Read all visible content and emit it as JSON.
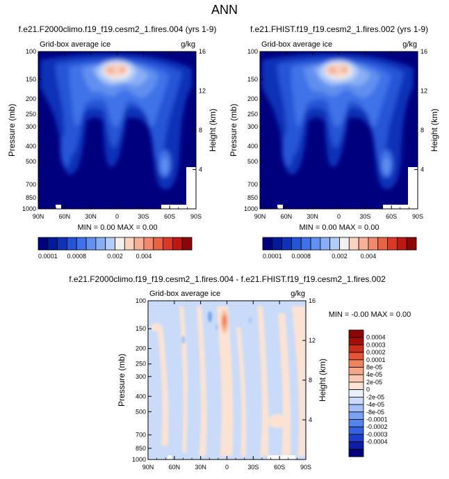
{
  "page_title": "ANN",
  "colors": {
    "ice_scale": [
      "#00007f",
      "#001a99",
      "#0f33b8",
      "#2555d6",
      "#3f72e8",
      "#6190ef",
      "#8aaef4",
      "#b4cdf8",
      "#f4f0ee",
      "#f8d3c2",
      "#f6b097",
      "#f18a6c",
      "#ea6244",
      "#db3925",
      "#bd1811",
      "#8e0505"
    ],
    "diff_scale": [
      "#00007f",
      "#0a1fa6",
      "#1d3fc8",
      "#3562df",
      "#5484ec",
      "#7aa2f1",
      "#a2c0f5",
      "#c9dbf8",
      "#e9f1fb",
      "#fbe3d4",
      "#f9c8b0",
      "#f5a887",
      "#ee835f",
      "#e35638",
      "#c92d1b",
      "#a30d07",
      "#8e0505"
    ]
  },
  "chart_data": [
    {
      "type": "heatmap",
      "title": "f.e21.F2000climo.f19_f19.cesm2_1.fires.004 (yrs 1-9)",
      "left_label": "Grid-box average ice",
      "right_label": "g/kg",
      "xlabel": "",
      "ylabel": "Pressure (mb)",
      "ylabel_right": "Height (km)",
      "x_ticks": [
        "90N",
        "60N",
        "30N",
        "0",
        "30S",
        "60S",
        "90S"
      ],
      "y_ticks": [
        "100",
        "150",
        "200",
        "250",
        "300",
        "400",
        "500",
        "700",
        "850",
        "1000"
      ],
      "y_right_ticks": [
        "16",
        "12",
        "8",
        "4"
      ],
      "min_max": "MIN =  0.00  MAX =  0.00",
      "colorbar": {
        "orientation": "horizontal",
        "labels": [
          "0.0001",
          "0.0008",
          "0.002",
          "0.004"
        ],
        "levels": 16
      }
    },
    {
      "type": "heatmap",
      "title": "f.e21.FHIST.f19_f19.cesm2_1.fires.002 (yrs 1-9)",
      "left_label": "Grid-box average ice",
      "right_label": "g/kg",
      "xlabel": "",
      "ylabel": "Pressure (mb)",
      "ylabel_right": "Height (km)",
      "x_ticks": [
        "90N",
        "60N",
        "30N",
        "0",
        "30S",
        "60S",
        "90S"
      ],
      "y_ticks": [
        "100",
        "150",
        "200",
        "250",
        "300",
        "400",
        "500",
        "700",
        "850",
        "1000"
      ],
      "y_right_ticks": [
        "16",
        "12",
        "8",
        "4"
      ],
      "min_max": "MIN =  0.00  MAX =  0.00",
      "colorbar": {
        "orientation": "horizontal",
        "labels": [
          "0.0001",
          "0.0008",
          "0.002",
          "0.004"
        ],
        "levels": 16
      }
    },
    {
      "type": "heatmap",
      "title": "f.e21.F2000climo.f19_f19.cesm2_1.fires.004 - f.e21.FHIST.f19_f19.cesm2_1.fires.002",
      "left_label": "Grid-box average ice",
      "right_label": "g/kg",
      "xlabel": "",
      "ylabel": "Pressure (mb)",
      "ylabel_right": "Height (km)",
      "x_ticks": [
        "90N",
        "60N",
        "30N",
        "0",
        "30S",
        "60S",
        "90S"
      ],
      "y_ticks": [
        "100",
        "150",
        "200",
        "250",
        "300",
        "400",
        "500",
        "700",
        "850",
        "1000"
      ],
      "y_right_ticks": [
        "16",
        "12",
        "8",
        "4"
      ],
      "min_max": "MIN = -0.00  MAX =   0.00",
      "colorbar": {
        "orientation": "vertical",
        "labels": [
          "0.0004",
          "0.0003",
          "0.0002",
          "0.0001",
          "8e-05",
          "4e-05",
          "2e-05",
          "0",
          "-2e-05",
          "-4e-05",
          "-8e-05",
          "-0.0001",
          "-0.0002",
          "-0.0003",
          "-0.0004"
        ]
      }
    }
  ]
}
